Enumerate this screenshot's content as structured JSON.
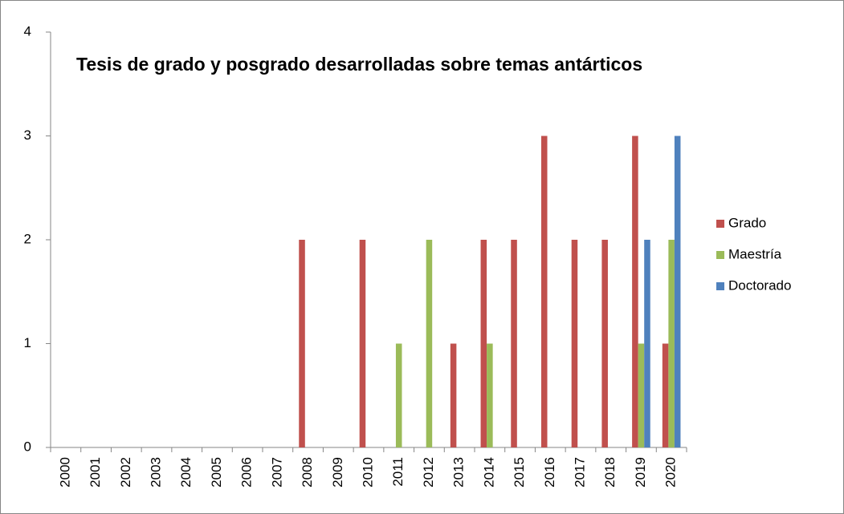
{
  "chart_data": {
    "type": "bar",
    "title": "Tesis de grado y posgrado desarrolladas sobre temas antárticos",
    "categories": [
      "2000",
      "2001",
      "2002",
      "2003",
      "2004",
      "2005",
      "2006",
      "2007",
      "2008",
      "2009",
      "2010",
      "2011",
      "2012",
      "2013",
      "2014",
      "2015",
      "2016",
      "2017",
      "2018",
      "2019",
      "2020"
    ],
    "series": [
      {
        "name": "Grado",
        "color": "#c0504d",
        "values": [
          0,
          0,
          0,
          0,
          0,
          0,
          0,
          0,
          2,
          0,
          2,
          0,
          0,
          1,
          2,
          2,
          3,
          2,
          2,
          3,
          1
        ]
      },
      {
        "name": "Maestría",
        "color": "#9bbb59",
        "values": [
          0,
          0,
          0,
          0,
          0,
          0,
          0,
          0,
          0,
          0,
          0,
          1,
          2,
          0,
          1,
          0,
          0,
          0,
          0,
          1,
          2
        ]
      },
      {
        "name": "Doctorado",
        "color": "#4f81bd",
        "values": [
          0,
          0,
          0,
          0,
          0,
          0,
          0,
          0,
          0,
          0,
          0,
          0,
          0,
          0,
          0,
          0,
          0,
          0,
          0,
          2,
          3
        ]
      }
    ],
    "ylim": [
      0,
      4
    ],
    "yticks": [
      0,
      1,
      2,
      3,
      4
    ],
    "grid": false,
    "legend": "right"
  }
}
